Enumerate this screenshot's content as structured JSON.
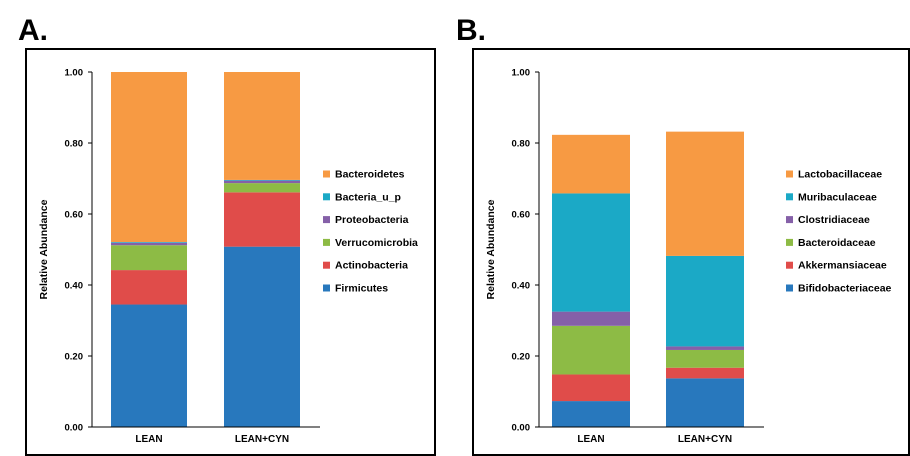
{
  "panel_labels": [
    "A.",
    "B."
  ],
  "colors": {
    "Firmicutes": "#2878BD",
    "Actinobacteria": "#E04C4A",
    "Verrucomicrobia": "#8DBB45",
    "Proteobacteria": "#8560A8",
    "Bacteria_u_p": "#1BA9C6",
    "Bacteroidetes": "#F79A43",
    "Bifidobacteriaceae": "#2878BD",
    "Akkermansiaceae": "#E04C4A",
    "Bacteroidaceae": "#8DBB45",
    "Clostridiaceae": "#8560A8",
    "Muribaculaceae": "#1BA9C6",
    "Lactobacillaceae": "#F79A43"
  },
  "chart_data": [
    {
      "type": "bar",
      "stacked": true,
      "panel": "A.",
      "ylabel": "Relative Abundance",
      "ylim": [
        0,
        1.0
      ],
      "yticks": [
        "0.00",
        "0.20",
        "0.40",
        "0.60",
        "0.80",
        "1.00"
      ],
      "categories": [
        "LEAN",
        "LEAN+CYN"
      ],
      "legend_position": "right",
      "series": [
        {
          "name": "Firmicutes",
          "values": [
            0.345,
            0.508
          ]
        },
        {
          "name": "Actinobacteria",
          "values": [
            0.097,
            0.153
          ]
        },
        {
          "name": "Verrucomicrobia",
          "values": [
            0.07,
            0.026
          ]
        },
        {
          "name": "Proteobacteria",
          "values": [
            0.007,
            0.007
          ]
        },
        {
          "name": "Bacteria_u_p",
          "values": [
            0.002,
            0.002
          ]
        },
        {
          "name": "Bacteroidetes",
          "values": [
            0.479,
            0.304
          ]
        }
      ]
    },
    {
      "type": "bar",
      "stacked": true,
      "panel": "B.",
      "ylabel": "Relative Abundance",
      "ylim": [
        0,
        1.0
      ],
      "yticks": [
        "0.00",
        "0.20",
        "0.40",
        "0.60",
        "0.80",
        "1.00"
      ],
      "categories": [
        "LEAN",
        "LEAN+CYN"
      ],
      "legend_position": "right",
      "series": [
        {
          "name": "Bifidobacteriaceae",
          "values": [
            0.073,
            0.137
          ]
        },
        {
          "name": "Akkermansiaceae",
          "values": [
            0.075,
            0.03
          ]
        },
        {
          "name": "Bacteroidaceae",
          "values": [
            0.137,
            0.05
          ]
        },
        {
          "name": "Clostridiaceae",
          "values": [
            0.04,
            0.01
          ]
        },
        {
          "name": "Muribaculaceae",
          "values": [
            0.333,
            0.255
          ]
        },
        {
          "name": "Lactobacillaceae",
          "values": [
            0.165,
            0.35
          ]
        }
      ]
    }
  ]
}
